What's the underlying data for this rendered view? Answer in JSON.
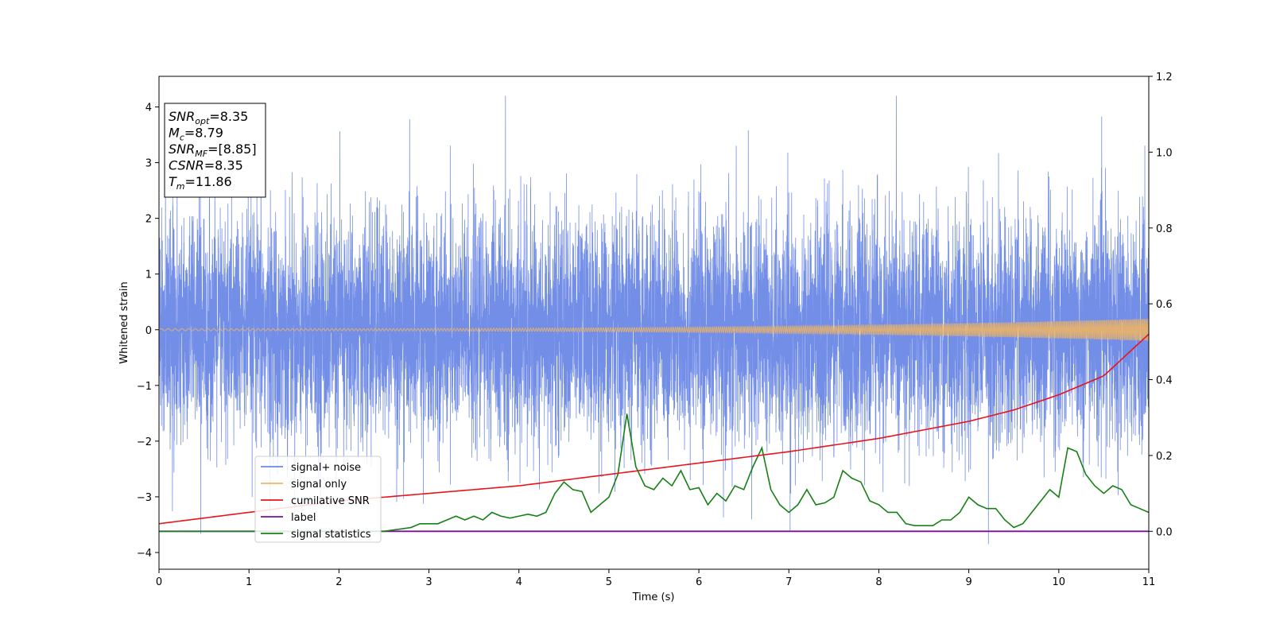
{
  "chart_data": {
    "type": "line",
    "xlabel": "Time (s)",
    "ylabel": "Whitened strain",
    "xlim": [
      0,
      11
    ],
    "ylim_left": [
      -4.3,
      4.55
    ],
    "ylim_right": [
      -0.1,
      1.2
    ],
    "xticks": [
      "0",
      "1",
      "2",
      "3",
      "4",
      "5",
      "6",
      "7",
      "8",
      "9",
      "10",
      "11"
    ],
    "yticks_left": [
      "−4",
      "−3",
      "−2",
      "−1",
      "0",
      "1",
      "2",
      "3",
      "4"
    ],
    "yticks_right": [
      "0.0",
      "0.2",
      "0.4",
      "0.6",
      "0.8",
      "1.0",
      "1.2"
    ],
    "grid": false,
    "legend_position": "lower-left",
    "annotation": [
      {
        "base": "SNR",
        "sub": "opt",
        "rest": "=8.35"
      },
      {
        "base": "M",
        "sub": "c",
        "rest": "=8.79"
      },
      {
        "base": "SNR",
        "sub": "MF",
        "rest": "=[8.85]"
      },
      {
        "base": "CSNR",
        "sub": "",
        "rest": "=8.35"
      },
      {
        "base": "T",
        "sub": "m",
        "rest": "=11.86"
      }
    ],
    "series": [
      {
        "name": "signal+ noise",
        "color": "#6b88e6",
        "axis": "left",
        "description_values": {
          "mean": 0,
          "std": 1.0,
          "approx_range": [
            -3.85,
            4.2
          ]
        }
      },
      {
        "name": "signal only",
        "color": "#f2b55e",
        "axis": "left",
        "chirp_amplitude_start": 0.02,
        "chirp_amplitude_end": 0.2
      },
      {
        "name": "cumilative SNR",
        "color": "#e8141b",
        "axis": "right",
        "x": [
          0,
          1,
          2,
          3,
          4,
          5,
          6,
          7,
          8,
          9,
          9.5,
          10,
          10.5,
          11
        ],
        "y": [
          0.02,
          0.05,
          0.08,
          0.1,
          0.12,
          0.15,
          0.18,
          0.21,
          0.245,
          0.29,
          0.32,
          0.36,
          0.41,
          0.52
        ]
      },
      {
        "name": "label",
        "color": "#7d0f9c",
        "axis": "right",
        "x": [
          0,
          11
        ],
        "y": [
          0,
          0
        ]
      },
      {
        "name": "signal statistics",
        "color": "#178016",
        "axis": "right",
        "x": [
          0,
          0.5,
          1,
          1.5,
          2,
          2.5,
          2.8,
          2.9,
          3.0,
          3.1,
          3.2,
          3.3,
          3.4,
          3.5,
          3.6,
          3.7,
          3.8,
          3.9,
          4.0,
          4.1,
          4.2,
          4.3,
          4.4,
          4.5,
          4.6,
          4.7,
          4.8,
          4.9,
          5.0,
          5.1,
          5.2,
          5.3,
          5.4,
          5.5,
          5.6,
          5.7,
          5.8,
          5.9,
          6.0,
          6.1,
          6.2,
          6.3,
          6.4,
          6.5,
          6.6,
          6.7,
          6.8,
          6.9,
          7.0,
          7.1,
          7.2,
          7.3,
          7.4,
          7.5,
          7.6,
          7.7,
          7.8,
          7.9,
          8.0,
          8.1,
          8.2,
          8.3,
          8.4,
          8.5,
          8.6,
          8.7,
          8.8,
          8.9,
          9.0,
          9.1,
          9.2,
          9.3,
          9.4,
          9.5,
          9.6,
          9.7,
          9.8,
          9.9,
          10.0,
          10.1,
          10.2,
          10.3,
          10.4,
          10.5,
          10.6,
          10.7,
          10.8,
          10.9,
          11.0
        ],
        "y": [
          0.0,
          0.0,
          0.0,
          0.0,
          0.0,
          0.0,
          0.01,
          0.02,
          0.02,
          0.02,
          0.03,
          0.04,
          0.03,
          0.04,
          0.03,
          0.05,
          0.04,
          0.035,
          0.04,
          0.045,
          0.04,
          0.05,
          0.1,
          0.13,
          0.11,
          0.105,
          0.05,
          0.07,
          0.09,
          0.15,
          0.31,
          0.17,
          0.12,
          0.11,
          0.14,
          0.12,
          0.16,
          0.11,
          0.115,
          0.07,
          0.1,
          0.08,
          0.12,
          0.11,
          0.17,
          0.22,
          0.11,
          0.07,
          0.05,
          0.07,
          0.11,
          0.07,
          0.075,
          0.09,
          0.16,
          0.14,
          0.13,
          0.08,
          0.07,
          0.05,
          0.05,
          0.02,
          0.015,
          0.015,
          0.015,
          0.03,
          0.03,
          0.05,
          0.09,
          0.07,
          0.06,
          0.06,
          0.03,
          0.01,
          0.02,
          0.05,
          0.08,
          0.11,
          0.09,
          0.22,
          0.21,
          0.15,
          0.12,
          0.1,
          0.12,
          0.11,
          0.07,
          0.06,
          0.05
        ]
      }
    ]
  }
}
